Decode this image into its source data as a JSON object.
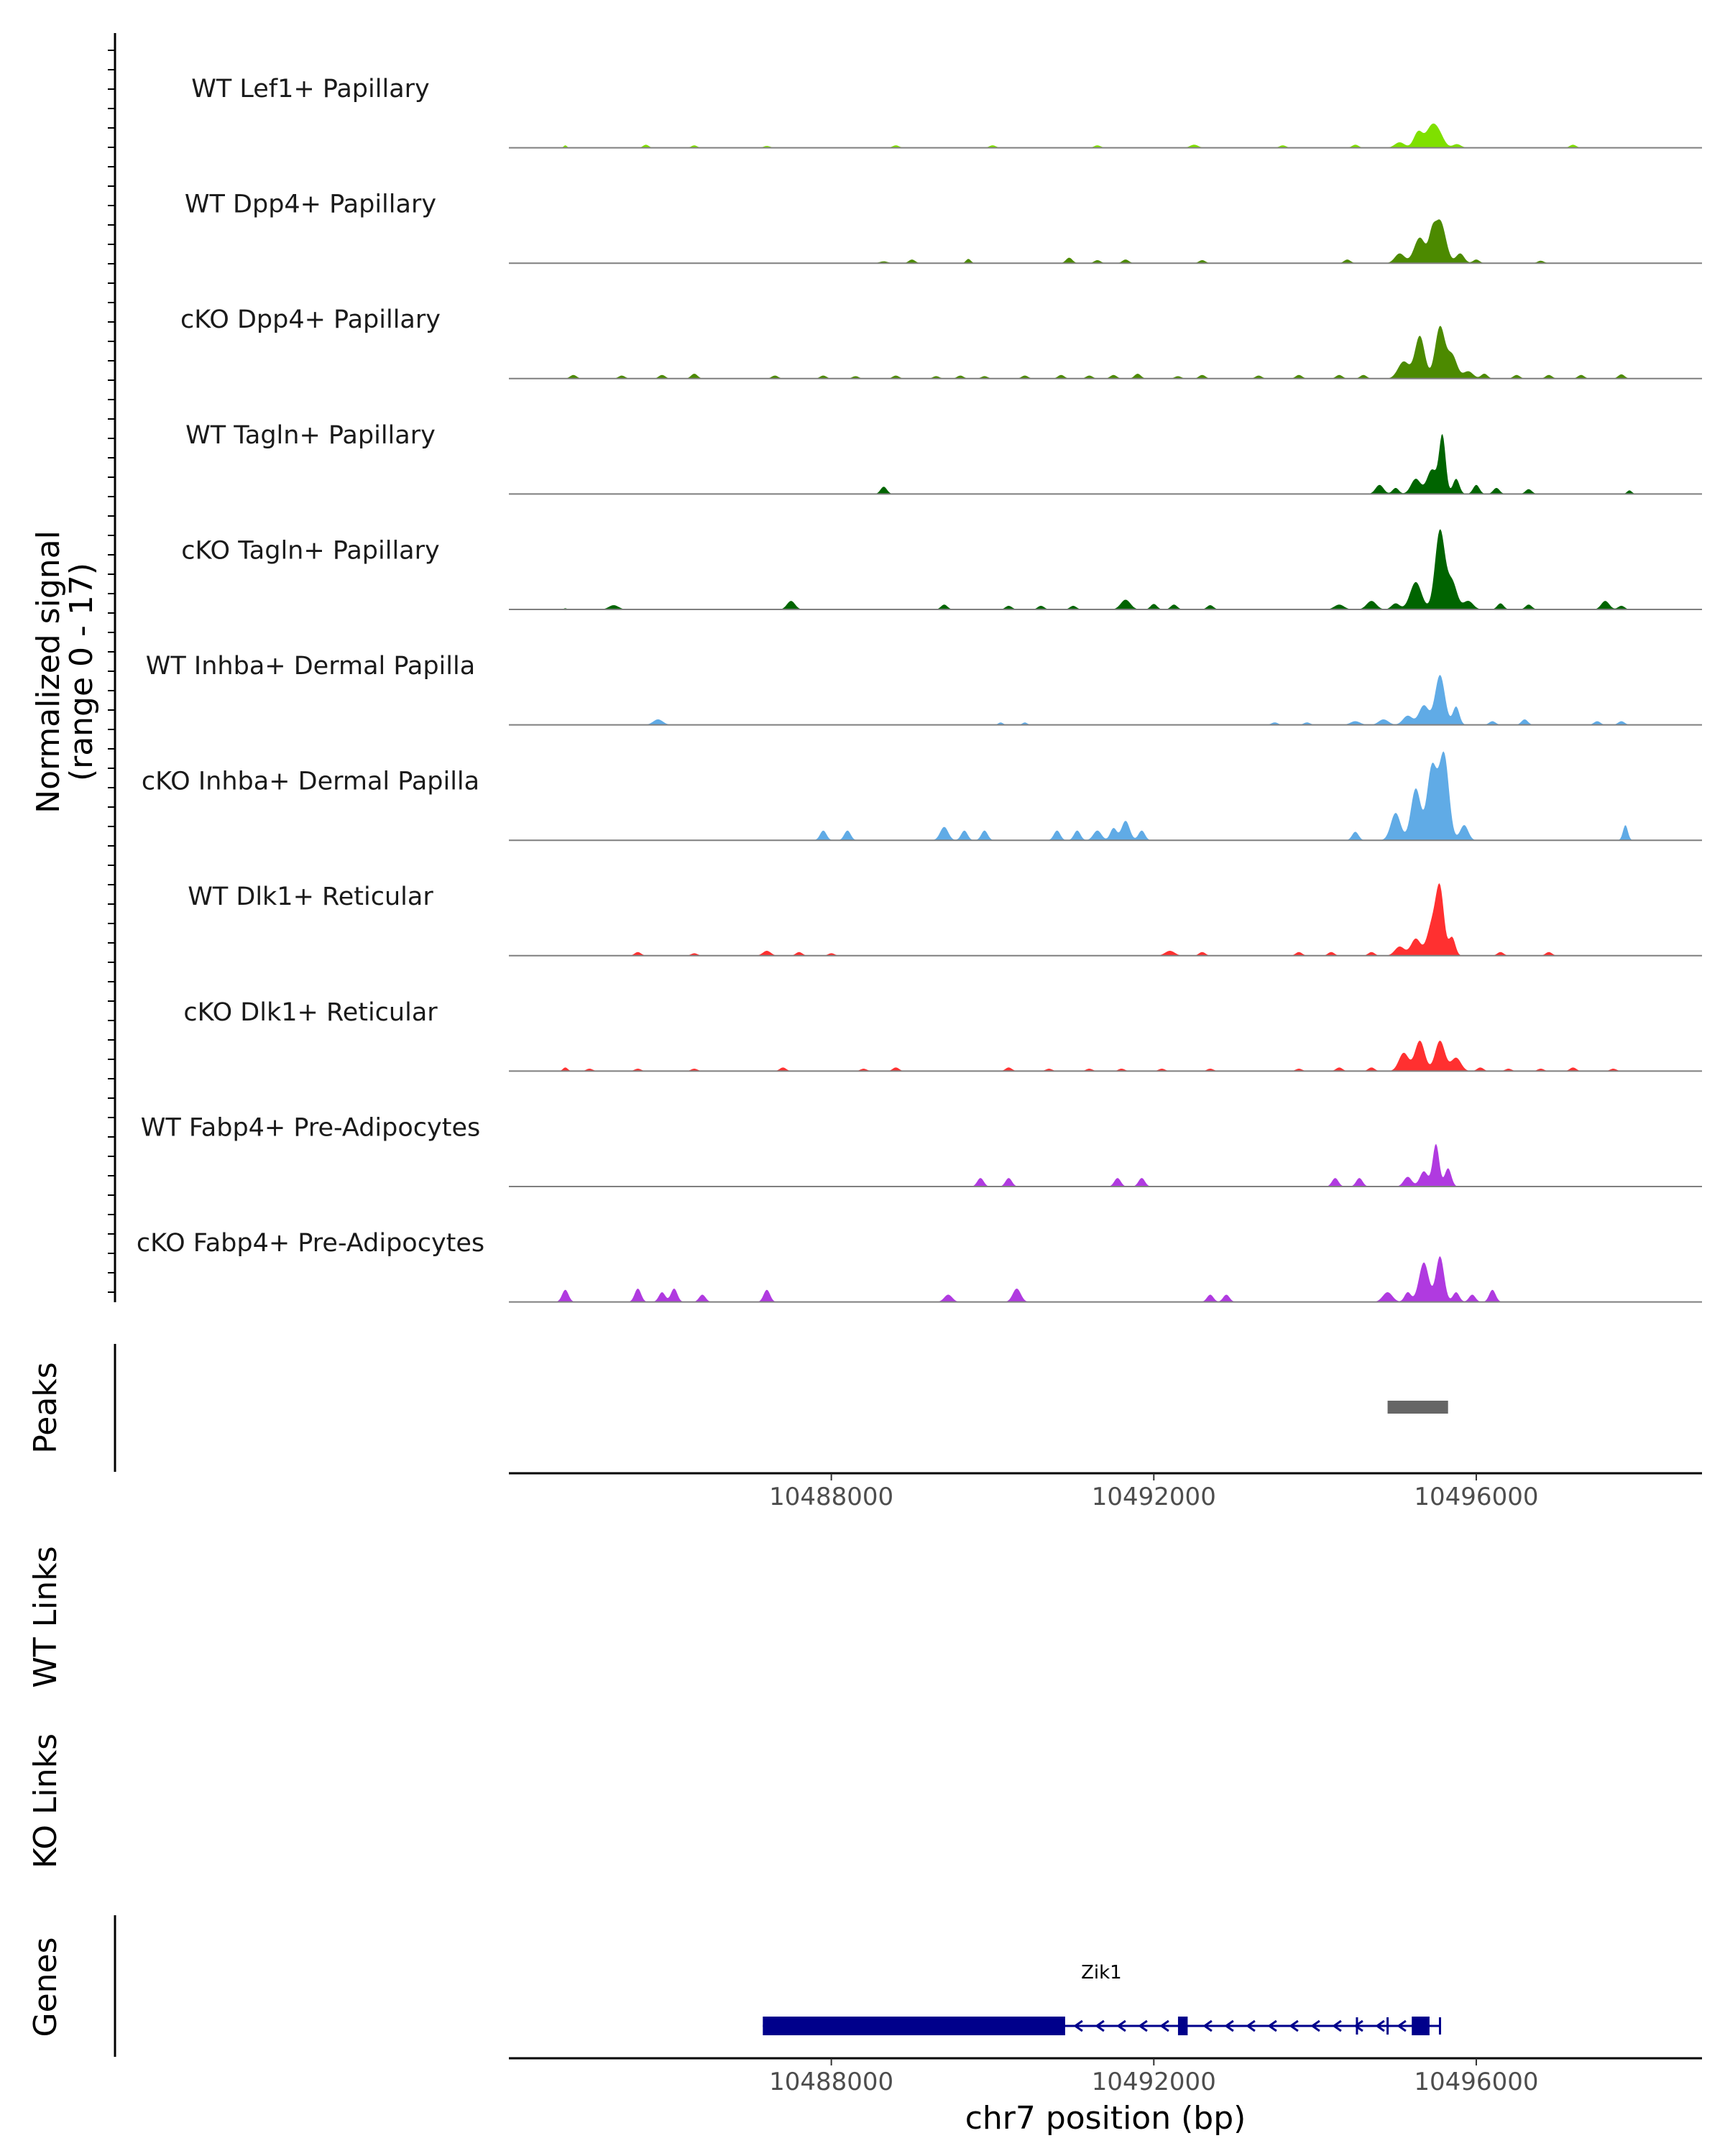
{
  "chart_data": {
    "type": "area",
    "title": "",
    "region": {
      "chrom": "chr7",
      "start": 10484000,
      "end": 10498800
    },
    "xlabel": "chr7 position (bp)",
    "x_ticks": [
      "10488000",
      "10492000",
      "10496000"
    ],
    "x_tick_values": [
      10488000,
      10492000,
      10496000
    ],
    "coverage_ylabel": "Normalized signal",
    "coverage_yrange": "(range 0 - 17)",
    "ylim": [
      0,
      17
    ],
    "tracks": [
      {
        "name": "WT Lef1+ Papillary",
        "color": "#7FE000",
        "bumps": [
          [
            10484700,
            20,
            0.4
          ],
          [
            10485700,
            35,
            0.5
          ],
          [
            10486300,
            35,
            0.4
          ],
          [
            10487200,
            40,
            0.3
          ],
          [
            10488800,
            40,
            0.4
          ],
          [
            10490000,
            40,
            0.4
          ],
          [
            10491300,
            40,
            0.4
          ],
          [
            10492500,
            50,
            0.5
          ],
          [
            10493600,
            40,
            0.4
          ],
          [
            10494500,
            40,
            0.5
          ],
          [
            10495050,
            60,
            0.9
          ],
          [
            10495280,
            55,
            2.6
          ],
          [
            10495450,
            70,
            3.5
          ],
          [
            10495550,
            60,
            1.5
          ],
          [
            10495760,
            50,
            0.6
          ],
          [
            10497200,
            40,
            0.5
          ]
        ]
      },
      {
        "name": "WT Dpp4+ Papillary",
        "color": "#4C8A00",
        "bumps": [
          [
            10488650,
            50,
            0.3
          ],
          [
            10489000,
            40,
            0.6
          ],
          [
            10489700,
            30,
            0.7
          ],
          [
            10490950,
            40,
            0.9
          ],
          [
            10491300,
            40,
            0.5
          ],
          [
            10491650,
            40,
            0.6
          ],
          [
            10492600,
            40,
            0.5
          ],
          [
            10494400,
            40,
            0.6
          ],
          [
            10495050,
            60,
            1.6
          ],
          [
            10495300,
            70,
            4.2
          ],
          [
            10495450,
            40,
            3.2
          ],
          [
            10495550,
            70,
            7.0
          ],
          [
            10495800,
            50,
            1.6
          ],
          [
            10496000,
            40,
            0.6
          ],
          [
            10496800,
            40,
            0.4
          ]
        ]
      },
      {
        "name": "cKO Dpp4+ Papillary",
        "color": "#4C8A00",
        "bumps": [
          [
            10484800,
            40,
            0.6
          ],
          [
            10485400,
            40,
            0.5
          ],
          [
            10485900,
            40,
            0.6
          ],
          [
            10486300,
            40,
            0.8
          ],
          [
            10487300,
            40,
            0.5
          ],
          [
            10487900,
            40,
            0.5
          ],
          [
            10488300,
            40,
            0.4
          ],
          [
            10488800,
            40,
            0.5
          ],
          [
            10489300,
            40,
            0.4
          ],
          [
            10489600,
            40,
            0.5
          ],
          [
            10489900,
            40,
            0.4
          ],
          [
            10490400,
            40,
            0.5
          ],
          [
            10490850,
            40,
            0.6
          ],
          [
            10491200,
            40,
            0.5
          ],
          [
            10491500,
            40,
            0.6
          ],
          [
            10491800,
            40,
            0.8
          ],
          [
            10492300,
            40,
            0.4
          ],
          [
            10492600,
            40,
            0.6
          ],
          [
            10493300,
            40,
            0.5
          ],
          [
            10493800,
            40,
            0.6
          ],
          [
            10494300,
            40,
            0.6
          ],
          [
            10494600,
            40,
            0.6
          ],
          [
            10495100,
            70,
            2.8
          ],
          [
            10495300,
            60,
            7.0
          ],
          [
            10495550,
            60,
            8.5
          ],
          [
            10495700,
            60,
            3.8
          ],
          [
            10495900,
            60,
            1.2
          ],
          [
            10496100,
            40,
            0.8
          ],
          [
            10496500,
            40,
            0.6
          ],
          [
            10496900,
            40,
            0.6
          ],
          [
            10497300,
            40,
            0.6
          ],
          [
            10497800,
            40,
            0.7
          ]
        ]
      },
      {
        "name": "WT Tagln+ Papillary",
        "color": "#006400",
        "bumps": [
          [
            10488650,
            40,
            1.2
          ],
          [
            10494800,
            50,
            1.5
          ],
          [
            10495000,
            40,
            1.0
          ],
          [
            10495250,
            60,
            2.5
          ],
          [
            10495450,
            60,
            4.0
          ],
          [
            10495580,
            40,
            9.5
          ],
          [
            10495750,
            40,
            2.5
          ],
          [
            10496000,
            40,
            1.5
          ],
          [
            10496250,
            40,
            1.0
          ],
          [
            10496650,
            40,
            0.8
          ],
          [
            10497900,
            30,
            0.6
          ]
        ]
      },
      {
        "name": "cKO Tagln+ Papillary",
        "color": "#006400",
        "bumps": [
          [
            10484700,
            20,
            0.2
          ],
          [
            10485300,
            60,
            0.7
          ],
          [
            10487500,
            50,
            1.4
          ],
          [
            10489400,
            40,
            0.8
          ],
          [
            10490200,
            40,
            0.6
          ],
          [
            10490600,
            40,
            0.6
          ],
          [
            10491000,
            40,
            0.6
          ],
          [
            10491650,
            60,
            1.6
          ],
          [
            10492000,
            40,
            0.9
          ],
          [
            10492250,
            40,
            0.8
          ],
          [
            10492700,
            40,
            0.7
          ],
          [
            10494300,
            60,
            0.8
          ],
          [
            10494700,
            60,
            1.4
          ],
          [
            10495000,
            50,
            1.0
          ],
          [
            10495250,
            70,
            4.5
          ],
          [
            10495550,
            60,
            13.0
          ],
          [
            10495700,
            60,
            4.5
          ],
          [
            10495900,
            60,
            1.4
          ],
          [
            10496300,
            40,
            1.0
          ],
          [
            10496650,
            40,
            0.8
          ],
          [
            10497600,
            50,
            1.4
          ],
          [
            10497800,
            40,
            0.6
          ]
        ]
      },
      {
        "name": "WT Inhba+ Dermal Papilla",
        "color": "#60ABE6",
        "bumps": [
          [
            10485850,
            60,
            0.9
          ],
          [
            10490100,
            30,
            0.4
          ],
          [
            10490400,
            30,
            0.4
          ],
          [
            10493500,
            40,
            0.4
          ],
          [
            10493900,
            40,
            0.4
          ],
          [
            10494500,
            60,
            0.6
          ],
          [
            10494850,
            60,
            0.9
          ],
          [
            10495150,
            60,
            1.5
          ],
          [
            10495350,
            60,
            3.2
          ],
          [
            10495550,
            60,
            8.2
          ],
          [
            10495750,
            40,
            3.0
          ],
          [
            10496200,
            40,
            0.6
          ],
          [
            10496600,
            40,
            0.9
          ],
          [
            10497500,
            40,
            0.6
          ],
          [
            10497800,
            40,
            0.6
          ]
        ]
      },
      {
        "name": "cKO Inhba+ Dermal Papilla",
        "color": "#60ABE6",
        "bumps": [
          [
            10487900,
            40,
            1.6
          ],
          [
            10488200,
            40,
            1.6
          ],
          [
            10489400,
            50,
            2.2
          ],
          [
            10489650,
            40,
            1.6
          ],
          [
            10489900,
            40,
            1.6
          ],
          [
            10490800,
            40,
            1.6
          ],
          [
            10491050,
            40,
            1.6
          ],
          [
            10491300,
            50,
            1.6
          ],
          [
            10491500,
            40,
            2.0
          ],
          [
            10491650,
            50,
            3.2
          ],
          [
            10491850,
            40,
            1.6
          ],
          [
            10494500,
            40,
            1.4
          ],
          [
            10495000,
            60,
            4.5
          ],
          [
            10495250,
            60,
            8.5
          ],
          [
            10495450,
            60,
            12.0
          ],
          [
            10495600,
            60,
            14.0
          ],
          [
            10495850,
            50,
            2.5
          ],
          [
            10497850,
            30,
            2.5
          ]
        ]
      },
      {
        "name": "WT Dlk1+ Reticular",
        "color": "#FF3030",
        "bumps": [
          [
            10485600,
            40,
            0.6
          ],
          [
            10486300,
            40,
            0.4
          ],
          [
            10487200,
            50,
            0.8
          ],
          [
            10487600,
            40,
            0.6
          ],
          [
            10488000,
            40,
            0.4
          ],
          [
            10492200,
            60,
            0.8
          ],
          [
            10492600,
            40,
            0.6
          ],
          [
            10493800,
            40,
            0.6
          ],
          [
            10494200,
            40,
            0.6
          ],
          [
            10494700,
            40,
            0.6
          ],
          [
            10495050,
            60,
            1.5
          ],
          [
            10495250,
            60,
            2.8
          ],
          [
            10495450,
            60,
            5.0
          ],
          [
            10495550,
            50,
            10.5
          ],
          [
            10495700,
            40,
            3.0
          ],
          [
            10496300,
            40,
            0.6
          ],
          [
            10496900,
            40,
            0.6
          ]
        ]
      },
      {
        "name": "cKO Dlk1+ Reticular",
        "color": "#FF3030",
        "bumps": [
          [
            10484700,
            30,
            0.6
          ],
          [
            10485000,
            40,
            0.4
          ],
          [
            10485600,
            40,
            0.4
          ],
          [
            10486300,
            40,
            0.4
          ],
          [
            10487400,
            40,
            0.6
          ],
          [
            10488400,
            40,
            0.4
          ],
          [
            10488800,
            40,
            0.6
          ],
          [
            10490200,
            40,
            0.6
          ],
          [
            10490700,
            40,
            0.4
          ],
          [
            10491200,
            40,
            0.4
          ],
          [
            10491600,
            40,
            0.4
          ],
          [
            10492100,
            40,
            0.4
          ],
          [
            10492700,
            40,
            0.4
          ],
          [
            10493800,
            40,
            0.4
          ],
          [
            10494300,
            40,
            0.6
          ],
          [
            10494700,
            40,
            0.6
          ],
          [
            10495100,
            60,
            3.0
          ],
          [
            10495300,
            60,
            5.0
          ],
          [
            10495550,
            60,
            5.0
          ],
          [
            10495750,
            60,
            2.2
          ],
          [
            10496050,
            40,
            0.6
          ],
          [
            10496400,
            40,
            0.4
          ],
          [
            10496800,
            40,
            0.4
          ],
          [
            10497200,
            40,
            0.6
          ],
          [
            10497700,
            40,
            0.4
          ]
        ]
      },
      {
        "name": "WT Fabp4+ Pre-Adipocytes",
        "color": "#B03AE0",
        "bumps": [
          [
            10489850,
            40,
            1.4
          ],
          [
            10490200,
            40,
            1.4
          ],
          [
            10491550,
            40,
            1.4
          ],
          [
            10491850,
            40,
            1.4
          ],
          [
            10494250,
            40,
            1.4
          ],
          [
            10494550,
            40,
            1.4
          ],
          [
            10495150,
            50,
            1.6
          ],
          [
            10495350,
            50,
            2.5
          ],
          [
            10495500,
            40,
            7.0
          ],
          [
            10495650,
            40,
            3.0
          ]
        ]
      },
      {
        "name": "cKO Fabp4+ Pre-Adipocytes",
        "color": "#B03AE0",
        "bumps": [
          [
            10484700,
            40,
            2.0
          ],
          [
            10485600,
            40,
            2.2
          ],
          [
            10485900,
            40,
            1.6
          ],
          [
            10486050,
            40,
            2.2
          ],
          [
            10486400,
            40,
            1.2
          ],
          [
            10487200,
            40,
            2.0
          ],
          [
            10489450,
            50,
            1.2
          ],
          [
            10490300,
            50,
            2.2
          ],
          [
            10492700,
            40,
            1.2
          ],
          [
            10492900,
            40,
            1.2
          ],
          [
            10494900,
            60,
            1.6
          ],
          [
            10495150,
            40,
            1.6
          ],
          [
            10495350,
            60,
            6.5
          ],
          [
            10495550,
            50,
            7.5
          ],
          [
            10495750,
            40,
            1.6
          ],
          [
            10495950,
            40,
            1.2
          ],
          [
            10496200,
            40,
            2.0
          ]
        ]
      }
    ],
    "peaks_label": "Peaks",
    "peaks": [
      {
        "start": 10494900,
        "end": 10495650
      }
    ],
    "link_tracks": [
      "WT Links",
      "KO Links"
    ],
    "genes_label": "Genes",
    "gene": {
      "name": "Zik1",
      "color": "#00008B",
      "strand": "-",
      "start": 10487150,
      "end": 10495550,
      "thick_segments": [
        [
          10487150,
          10490900
        ],
        [
          10492300,
          10492420
        ],
        [
          10495200,
          10495420
        ]
      ],
      "tss_ticks": [
        10494520,
        10494900,
        10495550
      ]
    }
  }
}
